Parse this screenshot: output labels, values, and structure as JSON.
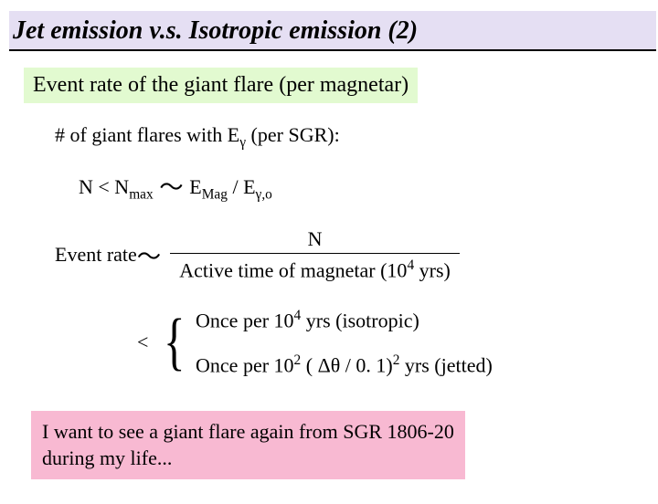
{
  "title": "Jet emission v.s. Isotropic emission (2)",
  "subtitle": "Event rate of the giant flare (per magnetar)",
  "line1": {
    "prefix": "# of giant flares with E",
    "sub": "γ",
    "suffix": " (per SGR):"
  },
  "line2": {
    "p1": "N < N",
    "p1sub": "max",
    "tilde": " ～ ",
    "p2": "E",
    "p2sub": "Mag",
    "slash": " / E",
    "p3sub": "γ,o"
  },
  "event_rate": {
    "label": "Event rate",
    "tilde": " ～ ",
    "numerator": "N",
    "den_prefix": "Active time of magnetar (10",
    "den_sup": "4",
    "den_suffix": " yrs)"
  },
  "cases": {
    "lt": "<",
    "case1": {
      "a": "Once per 10",
      "sup": "4",
      "b": " yrs    (isotropic)"
    },
    "case2": {
      "a": "Once per 10",
      "sup": "2",
      "b": " ( Δθ / 0. 1)",
      "sup2": "2",
      "c": " yrs    (jetted)"
    }
  },
  "footer": {
    "l1": "I want to see a giant flare again from SGR 1806-20",
    "l2": "during my life..."
  },
  "colors": {
    "title_bg": "#e5dff3",
    "subtitle_bg": "#e2fad0",
    "footer_bg": "#f8b9d2"
  }
}
